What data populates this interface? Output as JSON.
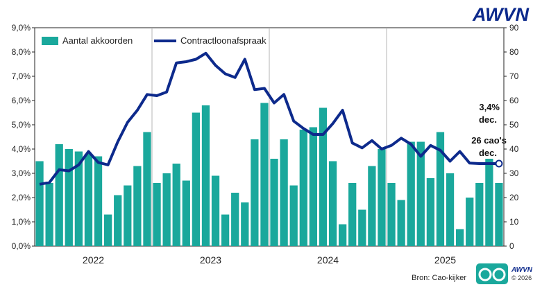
{
  "brand": {
    "top_logo": "AWVN",
    "bottom_logo_text": "AWVN",
    "bottom_logo_year": "© 2026",
    "source": "Bron: Cao-kijker",
    "accent_color": "#0d2a8c",
    "teal_color": "#1aa89c",
    "logo_icon": "cao-kijker-glasses-icon"
  },
  "chart_data": {
    "type": "bar+line",
    "title": "",
    "xlabel": "",
    "ylabel_left": "",
    "ylabel_right": "",
    "ylim_left": [
      0,
      9
    ],
    "ylim_right": [
      0,
      90
    ],
    "left_ticks": [
      "0,0%",
      "1,0%",
      "2,0%",
      "3,0%",
      "4,0%",
      "5,0%",
      "6,0%",
      "7,0%",
      "8,0%",
      "9,0%"
    ],
    "right_ticks": [
      "0",
      "10",
      "20",
      "30",
      "40",
      "50",
      "60",
      "70",
      "80",
      "90"
    ],
    "year_labels": [
      "2022",
      "2023",
      "2024",
      "2025"
    ],
    "grid": "vertical year separators",
    "legend_position": "top-left",
    "series": [
      {
        "name": "Aantal akkoorden",
        "type": "bar",
        "axis": "right",
        "color": "#1aa89c",
        "values": [
          35,
          26,
          42,
          40,
          39,
          38,
          37,
          13,
          21,
          25,
          33,
          47,
          26,
          30,
          34,
          27,
          55,
          58,
          29,
          13,
          22,
          18,
          44,
          59,
          36,
          44,
          25,
          48,
          49,
          57,
          35,
          9,
          26,
          15,
          33,
          40,
          26,
          19,
          43,
          43,
          28,
          47,
          30,
          7,
          20,
          26,
          36,
          26
        ]
      },
      {
        "name": "Contractloonafspraak",
        "type": "line",
        "axis": "left",
        "color": "#0d2a8c",
        "values": [
          2.55,
          2.62,
          3.15,
          3.1,
          3.35,
          3.9,
          3.45,
          3.35,
          4.3,
          5.1,
          5.6,
          6.25,
          6.2,
          6.35,
          7.55,
          7.6,
          7.7,
          7.95,
          7.45,
          7.1,
          6.95,
          7.7,
          6.45,
          6.5,
          5.9,
          6.25,
          5.15,
          4.85,
          4.6,
          4.6,
          5.05,
          5.6,
          4.25,
          4.05,
          4.35,
          4.0,
          4.15,
          4.45,
          4.2,
          3.7,
          4.15,
          3.95,
          3.5,
          3.9,
          3.42,
          3.4,
          3.4,
          3.4
        ]
      }
    ],
    "annotations": {
      "pct_value": "3,4%",
      "pct_sub": "dec.",
      "count_value": "26 cao's",
      "count_sub": "dec."
    }
  }
}
